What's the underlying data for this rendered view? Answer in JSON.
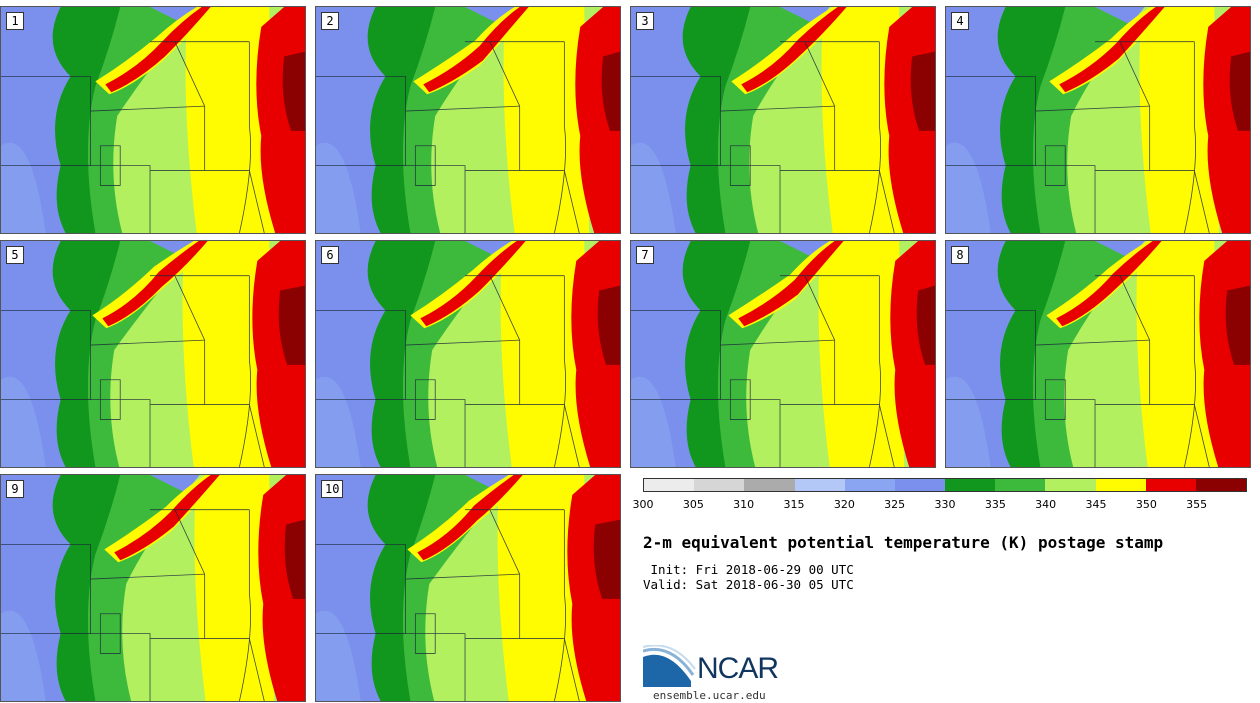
{
  "panels": [
    {
      "label": "1"
    },
    {
      "label": "2"
    },
    {
      "label": "3"
    },
    {
      "label": "4"
    },
    {
      "label": "5"
    },
    {
      "label": "6"
    },
    {
      "label": "7"
    },
    {
      "label": "8"
    },
    {
      "label": "9"
    },
    {
      "label": "10"
    }
  ],
  "colorbar": {
    "bins": [
      "#ececec",
      "#d6d6d6",
      "#ababab",
      "#b4c8f8",
      "#8aa6f2",
      "#7a90ec",
      "#11961e",
      "#3dba3c",
      "#b2f060",
      "#fffb00",
      "#e80000",
      "#8b0000"
    ],
    "ticks": [
      "300",
      "305",
      "310",
      "315",
      "320",
      "325",
      "330",
      "335",
      "340",
      "345",
      "350",
      "355"
    ]
  },
  "title": "2-m equivalent potential temperature (K) postage stamp",
  "init": " Init: Fri 2018-06-29 00 UTC",
  "valid": "Valid: Sat 2018-06-30 05 UTC",
  "logo": {
    "text": "NCAR",
    "site": "ensemble.ucar.edu"
  }
}
